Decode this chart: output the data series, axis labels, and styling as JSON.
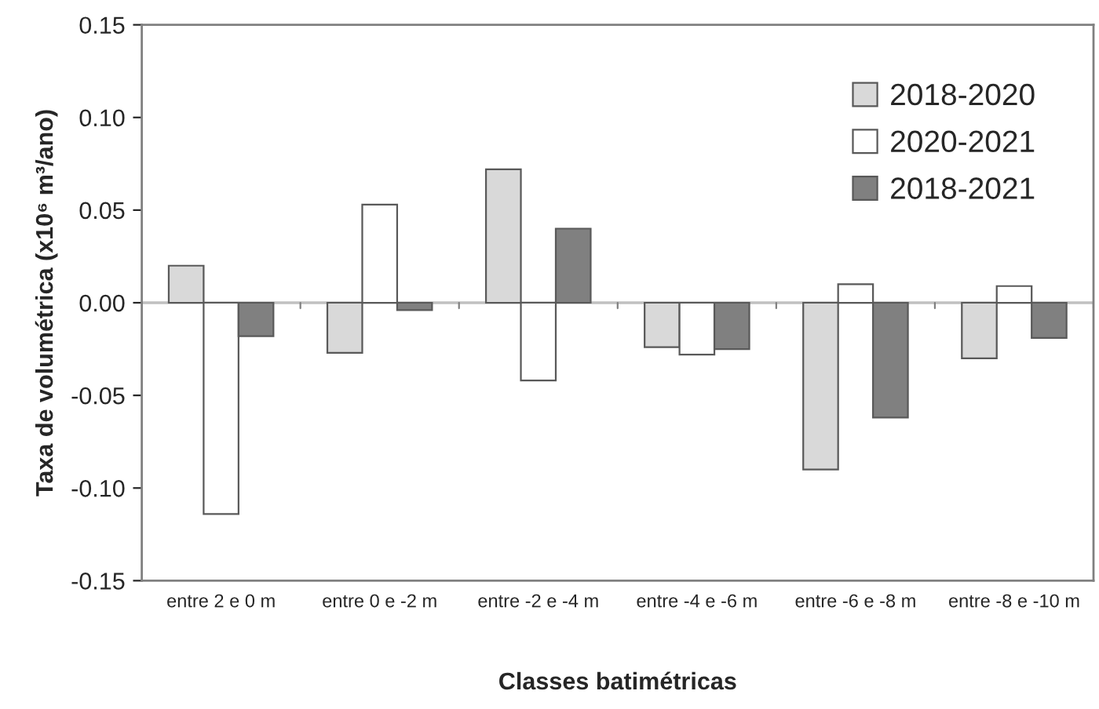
{
  "chart_data": {
    "type": "bar",
    "xlabel": "Classes batimétricas",
    "ylabel": "Taxa de volumétrica (x10⁶ m³/ano)",
    "categories": [
      "entre 2 e 0 m",
      "entre 0 e -2 m",
      "entre -2 e -4 m",
      "entre -4 e -6 m",
      "entre -6 e -8 m",
      "entre -8 e -10 m"
    ],
    "series": [
      {
        "name": "2018-2020",
        "color": "#d9d9d9",
        "values": [
          0.02,
          -0.027,
          0.072,
          -0.024,
          -0.09,
          -0.03
        ]
      },
      {
        "name": "2020-2021",
        "color": "#ffffff",
        "values": [
          -0.114,
          0.053,
          -0.042,
          -0.028,
          0.01,
          0.009
        ]
      },
      {
        "name": "2018-2021",
        "color": "#808080",
        "values": [
          -0.018,
          -0.004,
          0.04,
          -0.025,
          -0.062,
          -0.019
        ]
      }
    ],
    "ylim": [
      -0.15,
      0.15
    ],
    "yticks": [
      {
        "value": -0.15,
        "label": "-0.15"
      },
      {
        "value": -0.1,
        "label": "-0.10"
      },
      {
        "value": -0.05,
        "label": "-0.05"
      },
      {
        "value": 0,
        "label": "0.00"
      },
      {
        "value": 0.05,
        "label": "0.05"
      },
      {
        "value": 0.1,
        "label": "0.10"
      },
      {
        "value": 0.15,
        "label": "0.15"
      }
    ],
    "ref_lines": [
      {
        "axis": "y",
        "value": 0,
        "color": "#c0c0c0"
      }
    ],
    "grid": false,
    "legend": "top right"
  }
}
